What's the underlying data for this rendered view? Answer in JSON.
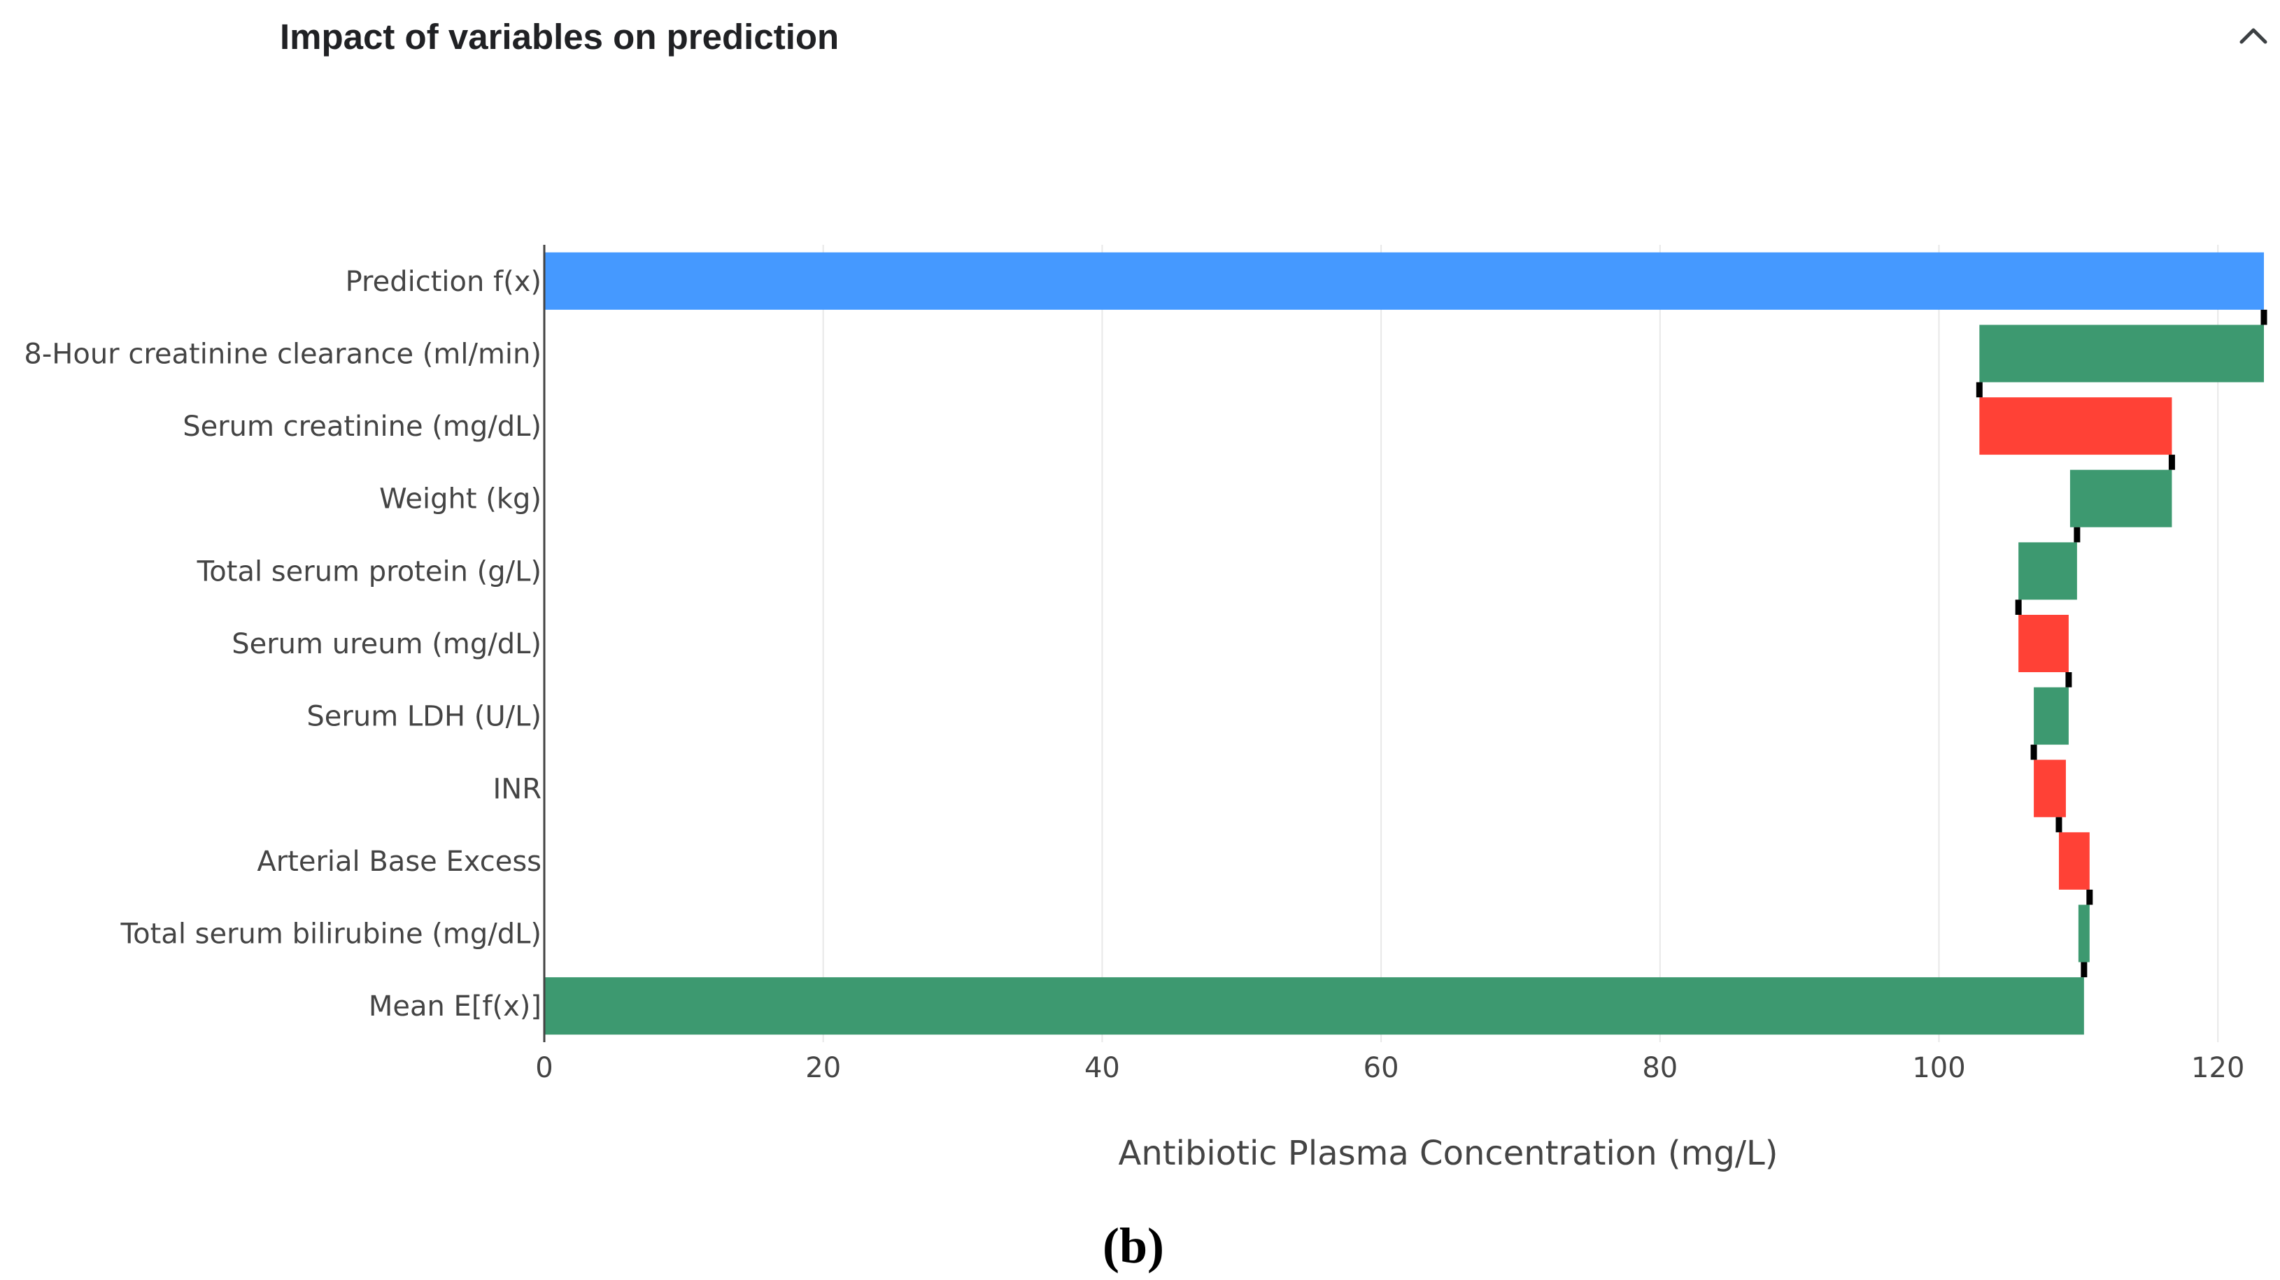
{
  "panel": {
    "title": "Impact of variables on prediction",
    "collapse_icon": "chevron-up-icon"
  },
  "chart_data": {
    "type": "bar",
    "orientation": "horizontal",
    "subtype": "waterfall",
    "title": "",
    "xlabel": "Antibiotic Plasma Concentration (mg/L)",
    "ylabel": "",
    "xlim": [
      0,
      123.5
    ],
    "x_ticks": [
      "0",
      "20",
      "40",
      "60",
      "80",
      "100",
      "120"
    ],
    "grid": true,
    "colors": {
      "prediction": "#4599FF",
      "positive": "#3D9970",
      "negative": "#FF4136",
      "connector": "#000000"
    },
    "bars": [
      {
        "label": "Prediction f(x)",
        "start": 0,
        "end": 123.3,
        "kind": "prediction"
      },
      {
        "label": "8-Hour creatinine clearance (ml/min)",
        "start": 102.9,
        "end": 123.3,
        "kind": "positive"
      },
      {
        "label": "Serum creatinine (mg/dL)",
        "start": 102.9,
        "end": 116.7,
        "kind": "negative"
      },
      {
        "label": "Weight (kg)",
        "start": 109.4,
        "end": 116.7,
        "kind": "positive"
      },
      {
        "label": "Total serum protein (g/L)",
        "start": 105.7,
        "end": 109.9,
        "kind": "positive"
      },
      {
        "label": "Serum ureum (mg/dL)",
        "start": 105.7,
        "end": 109.3,
        "kind": "negative"
      },
      {
        "label": "Serum LDH (U/L)",
        "start": 106.8,
        "end": 109.3,
        "kind": "positive"
      },
      {
        "label": "INR",
        "start": 106.8,
        "end": 109.1,
        "kind": "negative"
      },
      {
        "label": "Arterial Base Excess",
        "start": 108.6,
        "end": 110.8,
        "kind": "negative"
      },
      {
        "label": "Total serum bilirubine (mg/dL)",
        "start": 110.0,
        "end": 110.8,
        "kind": "positive"
      },
      {
        "label": "Mean E[f(x)]",
        "start": 0,
        "end": 110.4,
        "kind": "positive"
      }
    ]
  },
  "caption": "(b)"
}
